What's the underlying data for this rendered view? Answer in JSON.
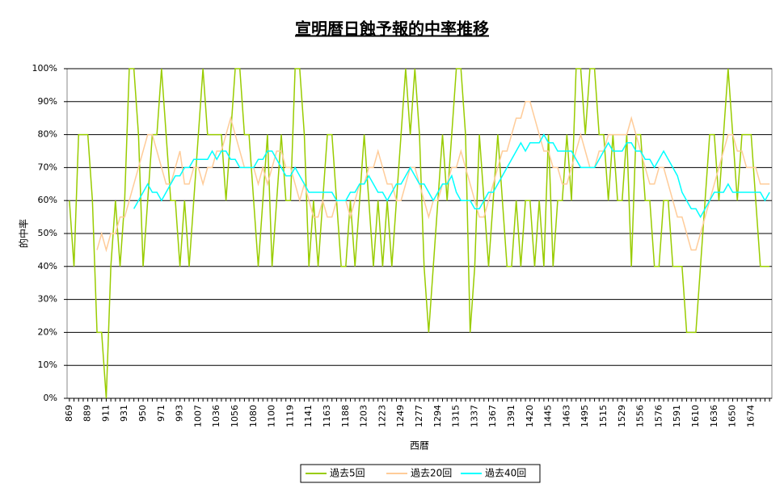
{
  "chart_data": {
    "type": "line",
    "title": "宣明暦日蝕予報的中率推移",
    "x_label": "西暦",
    "y_label": "的中率",
    "categories": [
      "869",
      null,
      null,
      null,
      "889",
      null,
      null,
      null,
      "911",
      null,
      null,
      null,
      "931",
      null,
      null,
      null,
      "950",
      null,
      null,
      null,
      "971",
      null,
      null,
      null,
      "993",
      null,
      null,
      null,
      "1007",
      null,
      null,
      null,
      "1036",
      null,
      null,
      null,
      "1056",
      null,
      null,
      null,
      "1080",
      null,
      null,
      null,
      "1100",
      null,
      null,
      null,
      "1119",
      null,
      null,
      null,
      "1141",
      null,
      null,
      null,
      "1163",
      null,
      null,
      null,
      "1188",
      null,
      null,
      null,
      "1203",
      null,
      null,
      null,
      "1223",
      null,
      null,
      null,
      "1249",
      null,
      null,
      null,
      "1277",
      null,
      null,
      null,
      "1294",
      null,
      null,
      null,
      "1315",
      null,
      null,
      null,
      "1337",
      null,
      null,
      null,
      "1367",
      null,
      null,
      null,
      "1391",
      null,
      null,
      null,
      "1420",
      null,
      null,
      null,
      "1445",
      null,
      null,
      null,
      "1463",
      null,
      null,
      null,
      "1495",
      null,
      null,
      null,
      "1515",
      null,
      null,
      null,
      "1529",
      null,
      null,
      null,
      "1556",
      null,
      null,
      null,
      "1576",
      null,
      null,
      null,
      "1591",
      null,
      null,
      null,
      "1610",
      null,
      null,
      null,
      "1636",
      null,
      null,
      null,
      "1650",
      null,
      null,
      null,
      "1674",
      null,
      null,
      null,
      null
    ],
    "series": [
      {
        "name": "過去5回",
        "color": "#99cc00",
        "values": [
          60,
          40,
          80,
          80,
          80,
          60,
          20,
          20,
          0,
          40,
          60,
          40,
          60,
          100,
          100,
          80,
          40,
          60,
          80,
          80,
          100,
          80,
          60,
          60,
          40,
          60,
          40,
          60,
          80,
          100,
          80,
          80,
          80,
          80,
          60,
          80,
          100,
          100,
          80,
          80,
          60,
          40,
          60,
          80,
          40,
          60,
          80,
          60,
          60,
          100,
          100,
          80,
          40,
          60,
          40,
          60,
          80,
          80,
          60,
          40,
          40,
          60,
          40,
          60,
          80,
          60,
          40,
          60,
          40,
          60,
          40,
          60,
          80,
          100,
          80,
          100,
          80,
          40,
          20,
          40,
          60,
          80,
          60,
          80,
          100,
          100,
          80,
          20,
          40,
          80,
          60,
          40,
          60,
          80,
          60,
          40,
          40,
          60,
          40,
          60,
          60,
          40,
          60,
          40,
          80,
          40,
          60,
          60,
          80,
          60,
          100,
          100,
          80,
          100,
          100,
          80,
          80,
          60,
          80,
          60,
          60,
          80,
          40,
          80,
          80,
          60,
          60,
          40,
          40,
          60,
          60,
          40,
          40,
          40,
          20,
          20,
          20,
          40,
          60,
          80,
          80,
          60,
          80,
          100,
          80,
          60,
          80,
          80,
          80,
          60,
          40,
          40,
          40
        ]
      },
      {
        "name": "過去20回",
        "color": "#ffcc99",
        "values": [
          null,
          null,
          null,
          null,
          null,
          null,
          45,
          50,
          45,
          50,
          50,
          55,
          55,
          60,
          65,
          70,
          75,
          80,
          80,
          75,
          70,
          65,
          65,
          70,
          75,
          65,
          65,
          70,
          70,
          65,
          70,
          70,
          75,
          75,
          80,
          85,
          80,
          75,
          70,
          70,
          70,
          65,
          70,
          65,
          70,
          75,
          75,
          70,
          70,
          65,
          60,
          65,
          60,
          55,
          55,
          60,
          55,
          55,
          60,
          60,
          60,
          55,
          60,
          65,
          65,
          70,
          70,
          75,
          70,
          65,
          65,
          60,
          60,
          65,
          70,
          70,
          65,
          60,
          55,
          60,
          60,
          65,
          65,
          70,
          70,
          75,
          70,
          65,
          60,
          55,
          55,
          60,
          65,
          70,
          75,
          75,
          80,
          85,
          85,
          90,
          90,
          85,
          80,
          75,
          75,
          70,
          70,
          65,
          65,
          70,
          75,
          80,
          75,
          70,
          70,
          75,
          75,
          80,
          80,
          80,
          80,
          80,
          85,
          80,
          75,
          70,
          65,
          65,
          70,
          70,
          65,
          60,
          55,
          55,
          50,
          45,
          45,
          50,
          55,
          60,
          65,
          70,
          75,
          80,
          80,
          75,
          75,
          70,
          70,
          70,
          65,
          65,
          65
        ]
      },
      {
        "name": "過去40回",
        "color": "#00ffff",
        "values": [
          null,
          null,
          null,
          null,
          null,
          null,
          null,
          null,
          null,
          null,
          null,
          null,
          null,
          null,
          57.5,
          60,
          62.5,
          65,
          62.5,
          62.5,
          60,
          62.5,
          65,
          67.5,
          67.5,
          70,
          70,
          72.5,
          72.5,
          72.5,
          72.5,
          75,
          72.5,
          75,
          75,
          72.5,
          72.5,
          70,
          70,
          70,
          70,
          72.5,
          72.5,
          75,
          75,
          72.5,
          70,
          67.5,
          67.5,
          70,
          67.5,
          65,
          62.5,
          62.5,
          62.5,
          62.5,
          62.5,
          62.5,
          60,
          60,
          60,
          62.5,
          62.5,
          65,
          65,
          67.5,
          65,
          62.5,
          62.5,
          60,
          62.5,
          65,
          65,
          67.5,
          70,
          67.5,
          65,
          65,
          62.5,
          60,
          62.5,
          65,
          65,
          67.5,
          62.5,
          60,
          60,
          60,
          57.5,
          57.5,
          60,
          62.5,
          62.5,
          65,
          67.5,
          70,
          72.5,
          75,
          77.5,
          75,
          77.5,
          77.5,
          77.5,
          80,
          77.5,
          77.5,
          75,
          75,
          75,
          75,
          72.5,
          70,
          70,
          70,
          70,
          72.5,
          75,
          77.5,
          75,
          75,
          75,
          77.5,
          77.5,
          75,
          75,
          72.5,
          72.5,
          70,
          72.5,
          75,
          72.5,
          70,
          67.5,
          62.5,
          60,
          57.5,
          57.5,
          55,
          57.5,
          60,
          62.5,
          62.5,
          62.5,
          65,
          62.5,
          62.5,
          62.5,
          62.5,
          62.5,
          62.5,
          62.5,
          60,
          62.5
        ]
      }
    ],
    "ylim": [
      0,
      100
    ],
    "yticks": [
      {
        "value": 0,
        "label": "0%"
      },
      {
        "value": 10,
        "label": "10%"
      },
      {
        "value": 20,
        "label": "20%"
      },
      {
        "value": 30,
        "label": "30%"
      },
      {
        "value": 40,
        "label": "40%"
      },
      {
        "value": 50,
        "label": "50%"
      },
      {
        "value": 60,
        "label": "60%"
      },
      {
        "value": 70,
        "label": "70%"
      },
      {
        "value": 80,
        "label": "80%"
      },
      {
        "value": 90,
        "label": "90%"
      },
      {
        "value": 100,
        "label": "100%"
      }
    ],
    "grid": true,
    "legend": "bottom"
  }
}
